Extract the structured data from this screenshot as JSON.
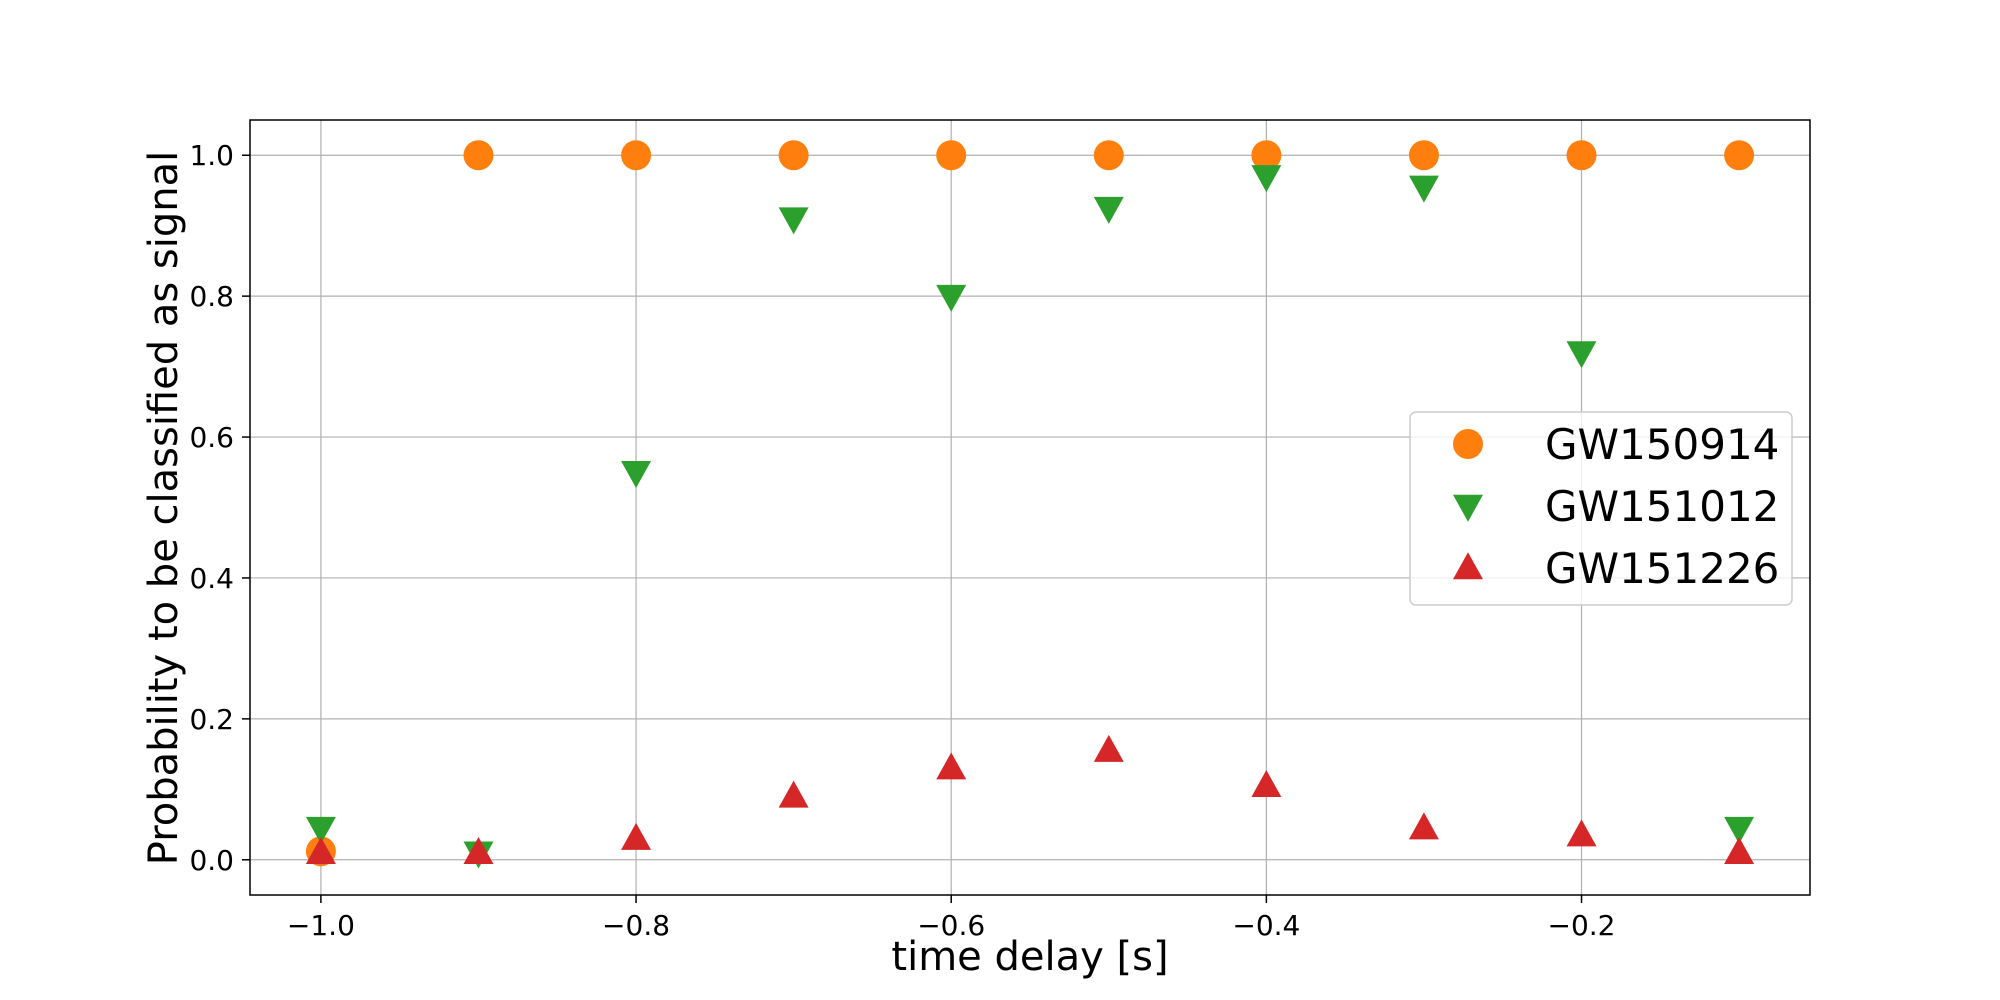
{
  "chart_data": {
    "type": "scatter",
    "title": "",
    "xlabel": "time delay [s]",
    "ylabel": "Probability to be classified as signal",
    "xlim": [
      -1.045,
      -0.055
    ],
    "ylim": [
      -0.05,
      1.05
    ],
    "xticks": [
      -1.0,
      -0.8,
      -0.6,
      -0.4,
      -0.2
    ],
    "xtick_labels": [
      "−1.0",
      "−0.8",
      "−0.6",
      "−0.4",
      "−0.2"
    ],
    "yticks": [
      0.0,
      0.2,
      0.4,
      0.6,
      0.8,
      1.0
    ],
    "ytick_labels": [
      "0.0",
      "0.2",
      "0.4",
      "0.6",
      "0.8",
      "1.0"
    ],
    "grid": true,
    "legend_position": "center-right",
    "x": [
      -1.0,
      -0.9,
      -0.8,
      -0.7,
      -0.6,
      -0.5,
      -0.4,
      -0.3,
      -0.2,
      -0.1
    ],
    "series": [
      {
        "name": "GW150914",
        "marker": "circle",
        "color": "#ff7f0e",
        "values": [
          0.012,
          1.0,
          1.0,
          1.0,
          1.0,
          1.0,
          1.0,
          1.0,
          1.0,
          1.0
        ]
      },
      {
        "name": "GW151012",
        "marker": "triangle-down",
        "color": "#2ca02c",
        "values": [
          0.045,
          0.01,
          0.55,
          0.91,
          0.8,
          0.925,
          0.97,
          0.955,
          0.72,
          0.045
        ]
      },
      {
        "name": "GW151226",
        "marker": "triangle-up",
        "color": "#d62728",
        "values": [
          0.01,
          0.01,
          0.03,
          0.09,
          0.13,
          0.155,
          0.105,
          0.045,
          0.035,
          0.01
        ]
      }
    ]
  }
}
